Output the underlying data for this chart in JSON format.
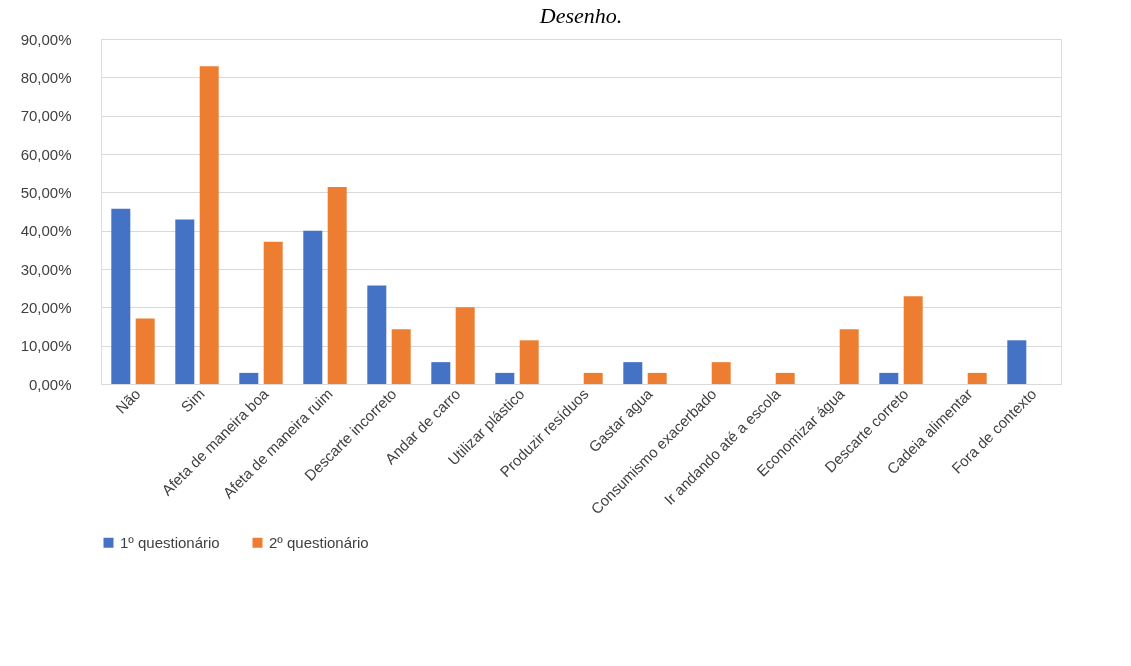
{
  "chart_data": {
    "type": "bar",
    "title": "Desenho.",
    "categories": [
      "Não",
      "Sim",
      "Afeta de maneira boa",
      "Afeta de maneira ruim",
      "Descarte incorreto",
      "Andar de carro",
      "Utilizar plástico",
      "Produzir resíduos",
      "Gastar agua",
      "Consumismo exacerbado",
      "Ir andando até a escola",
      "Economizar água",
      "Descarte correto",
      "Cadeia alimentar",
      "Fora de contexto"
    ],
    "series": [
      {
        "name": "1º questionário",
        "color": "#4472c4",
        "values": [
          45.7,
          42.9,
          2.9,
          40.0,
          25.7,
          5.7,
          2.9,
          0,
          5.7,
          0,
          0,
          0,
          2.9,
          0,
          11.4
        ]
      },
      {
        "name": "2º questionário",
        "color": "#ed7d31",
        "values": [
          17.1,
          82.9,
          37.1,
          51.4,
          14.3,
          20.0,
          11.4,
          2.9,
          2.9,
          5.7,
          2.9,
          14.3,
          22.9,
          2.9,
          0
        ]
      }
    ],
    "ylim": [
      0,
      90
    ],
    "yticks": [
      {
        "value": 0,
        "label": "0,00%"
      },
      {
        "value": 10,
        "label": "10,00%"
      },
      {
        "value": 20,
        "label": "20,00%"
      },
      {
        "value": 30,
        "label": "30,00%"
      },
      {
        "value": 40,
        "label": "40,00%"
      },
      {
        "value": 50,
        "label": "50,00%"
      },
      {
        "value": 60,
        "label": "60,00%"
      },
      {
        "value": 70,
        "label": "70,00%"
      },
      {
        "value": 80,
        "label": "80,00%"
      },
      {
        "value": 90,
        "label": "90,00%"
      }
    ],
    "grid": "y",
    "legend": "bottom"
  }
}
